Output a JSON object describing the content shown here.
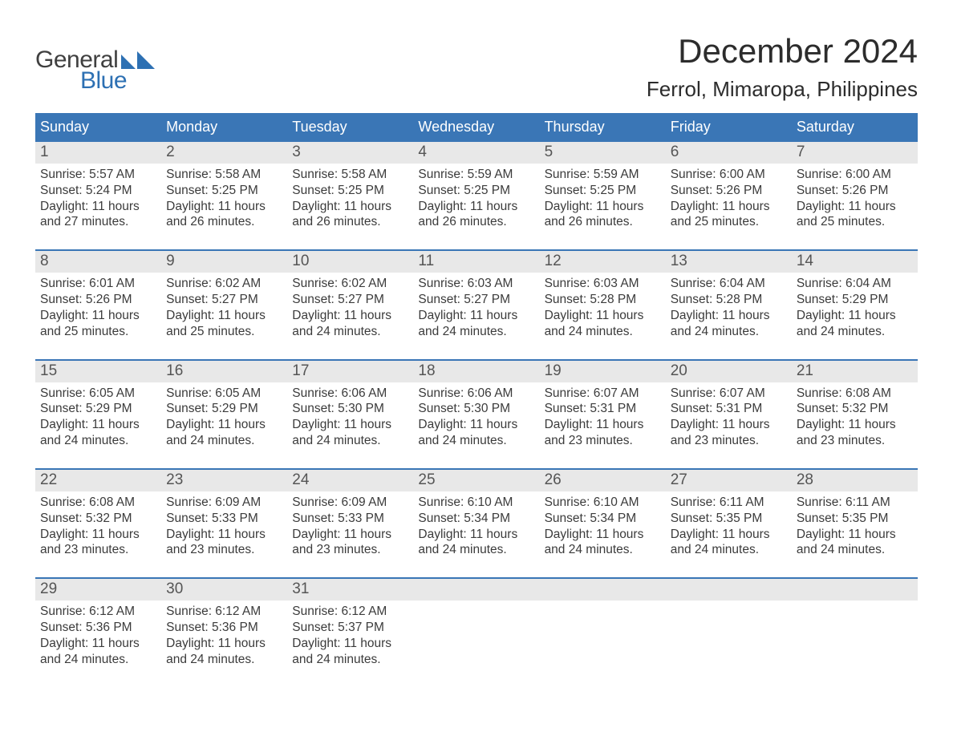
{
  "logo": {
    "text_top": "General",
    "text_bottom": "Blue",
    "mark_color": "#2d70b3"
  },
  "title": {
    "month": "December 2024",
    "location": "Ferrol, Mimaropa, Philippines"
  },
  "colors": {
    "header_bg": "#3a76b6",
    "header_text": "#ffffff",
    "daynum_band_bg": "#e8e8e8",
    "week_rule": "#3a76b6",
    "body_text": "#3b3b3b",
    "page_bg": "#ffffff",
    "logo_gray": "#404040",
    "logo_blue": "#2d70b3"
  },
  "typography": {
    "month_title_pt": 42,
    "location_pt": 26,
    "dow_pt": 18,
    "daynum_pt": 19,
    "body_pt": 15.5,
    "logo_pt": 30,
    "family": "Arial"
  },
  "days_of_week": [
    "Sunday",
    "Monday",
    "Tuesday",
    "Wednesday",
    "Thursday",
    "Friday",
    "Saturday"
  ],
  "weeks": [
    [
      {
        "n": "1",
        "sunrise": "Sunrise: 5:57 AM",
        "sunset": "Sunset: 5:24 PM",
        "d1": "Daylight: 11 hours",
        "d2": "and 27 minutes."
      },
      {
        "n": "2",
        "sunrise": "Sunrise: 5:58 AM",
        "sunset": "Sunset: 5:25 PM",
        "d1": "Daylight: 11 hours",
        "d2": "and 26 minutes."
      },
      {
        "n": "3",
        "sunrise": "Sunrise: 5:58 AM",
        "sunset": "Sunset: 5:25 PM",
        "d1": "Daylight: 11 hours",
        "d2": "and 26 minutes."
      },
      {
        "n": "4",
        "sunrise": "Sunrise: 5:59 AM",
        "sunset": "Sunset: 5:25 PM",
        "d1": "Daylight: 11 hours",
        "d2": "and 26 minutes."
      },
      {
        "n": "5",
        "sunrise": "Sunrise: 5:59 AM",
        "sunset": "Sunset: 5:25 PM",
        "d1": "Daylight: 11 hours",
        "d2": "and 26 minutes."
      },
      {
        "n": "6",
        "sunrise": "Sunrise: 6:00 AM",
        "sunset": "Sunset: 5:26 PM",
        "d1": "Daylight: 11 hours",
        "d2": "and 25 minutes."
      },
      {
        "n": "7",
        "sunrise": "Sunrise: 6:00 AM",
        "sunset": "Sunset: 5:26 PM",
        "d1": "Daylight: 11 hours",
        "d2": "and 25 minutes."
      }
    ],
    [
      {
        "n": "8",
        "sunrise": "Sunrise: 6:01 AM",
        "sunset": "Sunset: 5:26 PM",
        "d1": "Daylight: 11 hours",
        "d2": "and 25 minutes."
      },
      {
        "n": "9",
        "sunrise": "Sunrise: 6:02 AM",
        "sunset": "Sunset: 5:27 PM",
        "d1": "Daylight: 11 hours",
        "d2": "and 25 minutes."
      },
      {
        "n": "10",
        "sunrise": "Sunrise: 6:02 AM",
        "sunset": "Sunset: 5:27 PM",
        "d1": "Daylight: 11 hours",
        "d2": "and 24 minutes."
      },
      {
        "n": "11",
        "sunrise": "Sunrise: 6:03 AM",
        "sunset": "Sunset: 5:27 PM",
        "d1": "Daylight: 11 hours",
        "d2": "and 24 minutes."
      },
      {
        "n": "12",
        "sunrise": "Sunrise: 6:03 AM",
        "sunset": "Sunset: 5:28 PM",
        "d1": "Daylight: 11 hours",
        "d2": "and 24 minutes."
      },
      {
        "n": "13",
        "sunrise": "Sunrise: 6:04 AM",
        "sunset": "Sunset: 5:28 PM",
        "d1": "Daylight: 11 hours",
        "d2": "and 24 minutes."
      },
      {
        "n": "14",
        "sunrise": "Sunrise: 6:04 AM",
        "sunset": "Sunset: 5:29 PM",
        "d1": "Daylight: 11 hours",
        "d2": "and 24 minutes."
      }
    ],
    [
      {
        "n": "15",
        "sunrise": "Sunrise: 6:05 AM",
        "sunset": "Sunset: 5:29 PM",
        "d1": "Daylight: 11 hours",
        "d2": "and 24 minutes."
      },
      {
        "n": "16",
        "sunrise": "Sunrise: 6:05 AM",
        "sunset": "Sunset: 5:29 PM",
        "d1": "Daylight: 11 hours",
        "d2": "and 24 minutes."
      },
      {
        "n": "17",
        "sunrise": "Sunrise: 6:06 AM",
        "sunset": "Sunset: 5:30 PM",
        "d1": "Daylight: 11 hours",
        "d2": "and 24 minutes."
      },
      {
        "n": "18",
        "sunrise": "Sunrise: 6:06 AM",
        "sunset": "Sunset: 5:30 PM",
        "d1": "Daylight: 11 hours",
        "d2": "and 24 minutes."
      },
      {
        "n": "19",
        "sunrise": "Sunrise: 6:07 AM",
        "sunset": "Sunset: 5:31 PM",
        "d1": "Daylight: 11 hours",
        "d2": "and 23 minutes."
      },
      {
        "n": "20",
        "sunrise": "Sunrise: 6:07 AM",
        "sunset": "Sunset: 5:31 PM",
        "d1": "Daylight: 11 hours",
        "d2": "and 23 minutes."
      },
      {
        "n": "21",
        "sunrise": "Sunrise: 6:08 AM",
        "sunset": "Sunset: 5:32 PM",
        "d1": "Daylight: 11 hours",
        "d2": "and 23 minutes."
      }
    ],
    [
      {
        "n": "22",
        "sunrise": "Sunrise: 6:08 AM",
        "sunset": "Sunset: 5:32 PM",
        "d1": "Daylight: 11 hours",
        "d2": "and 23 minutes."
      },
      {
        "n": "23",
        "sunrise": "Sunrise: 6:09 AM",
        "sunset": "Sunset: 5:33 PM",
        "d1": "Daylight: 11 hours",
        "d2": "and 23 minutes."
      },
      {
        "n": "24",
        "sunrise": "Sunrise: 6:09 AM",
        "sunset": "Sunset: 5:33 PM",
        "d1": "Daylight: 11 hours",
        "d2": "and 23 minutes."
      },
      {
        "n": "25",
        "sunrise": "Sunrise: 6:10 AM",
        "sunset": "Sunset: 5:34 PM",
        "d1": "Daylight: 11 hours",
        "d2": "and 24 minutes."
      },
      {
        "n": "26",
        "sunrise": "Sunrise: 6:10 AM",
        "sunset": "Sunset: 5:34 PM",
        "d1": "Daylight: 11 hours",
        "d2": "and 24 minutes."
      },
      {
        "n": "27",
        "sunrise": "Sunrise: 6:11 AM",
        "sunset": "Sunset: 5:35 PM",
        "d1": "Daylight: 11 hours",
        "d2": "and 24 minutes."
      },
      {
        "n": "28",
        "sunrise": "Sunrise: 6:11 AM",
        "sunset": "Sunset: 5:35 PM",
        "d1": "Daylight: 11 hours",
        "d2": "and 24 minutes."
      }
    ],
    [
      {
        "n": "29",
        "sunrise": "Sunrise: 6:12 AM",
        "sunset": "Sunset: 5:36 PM",
        "d1": "Daylight: 11 hours",
        "d2": "and 24 minutes."
      },
      {
        "n": "30",
        "sunrise": "Sunrise: 6:12 AM",
        "sunset": "Sunset: 5:36 PM",
        "d1": "Daylight: 11 hours",
        "d2": "and 24 minutes."
      },
      {
        "n": "31",
        "sunrise": "Sunrise: 6:12 AM",
        "sunset": "Sunset: 5:37 PM",
        "d1": "Daylight: 11 hours",
        "d2": "and 24 minutes."
      },
      null,
      null,
      null,
      null
    ]
  ]
}
